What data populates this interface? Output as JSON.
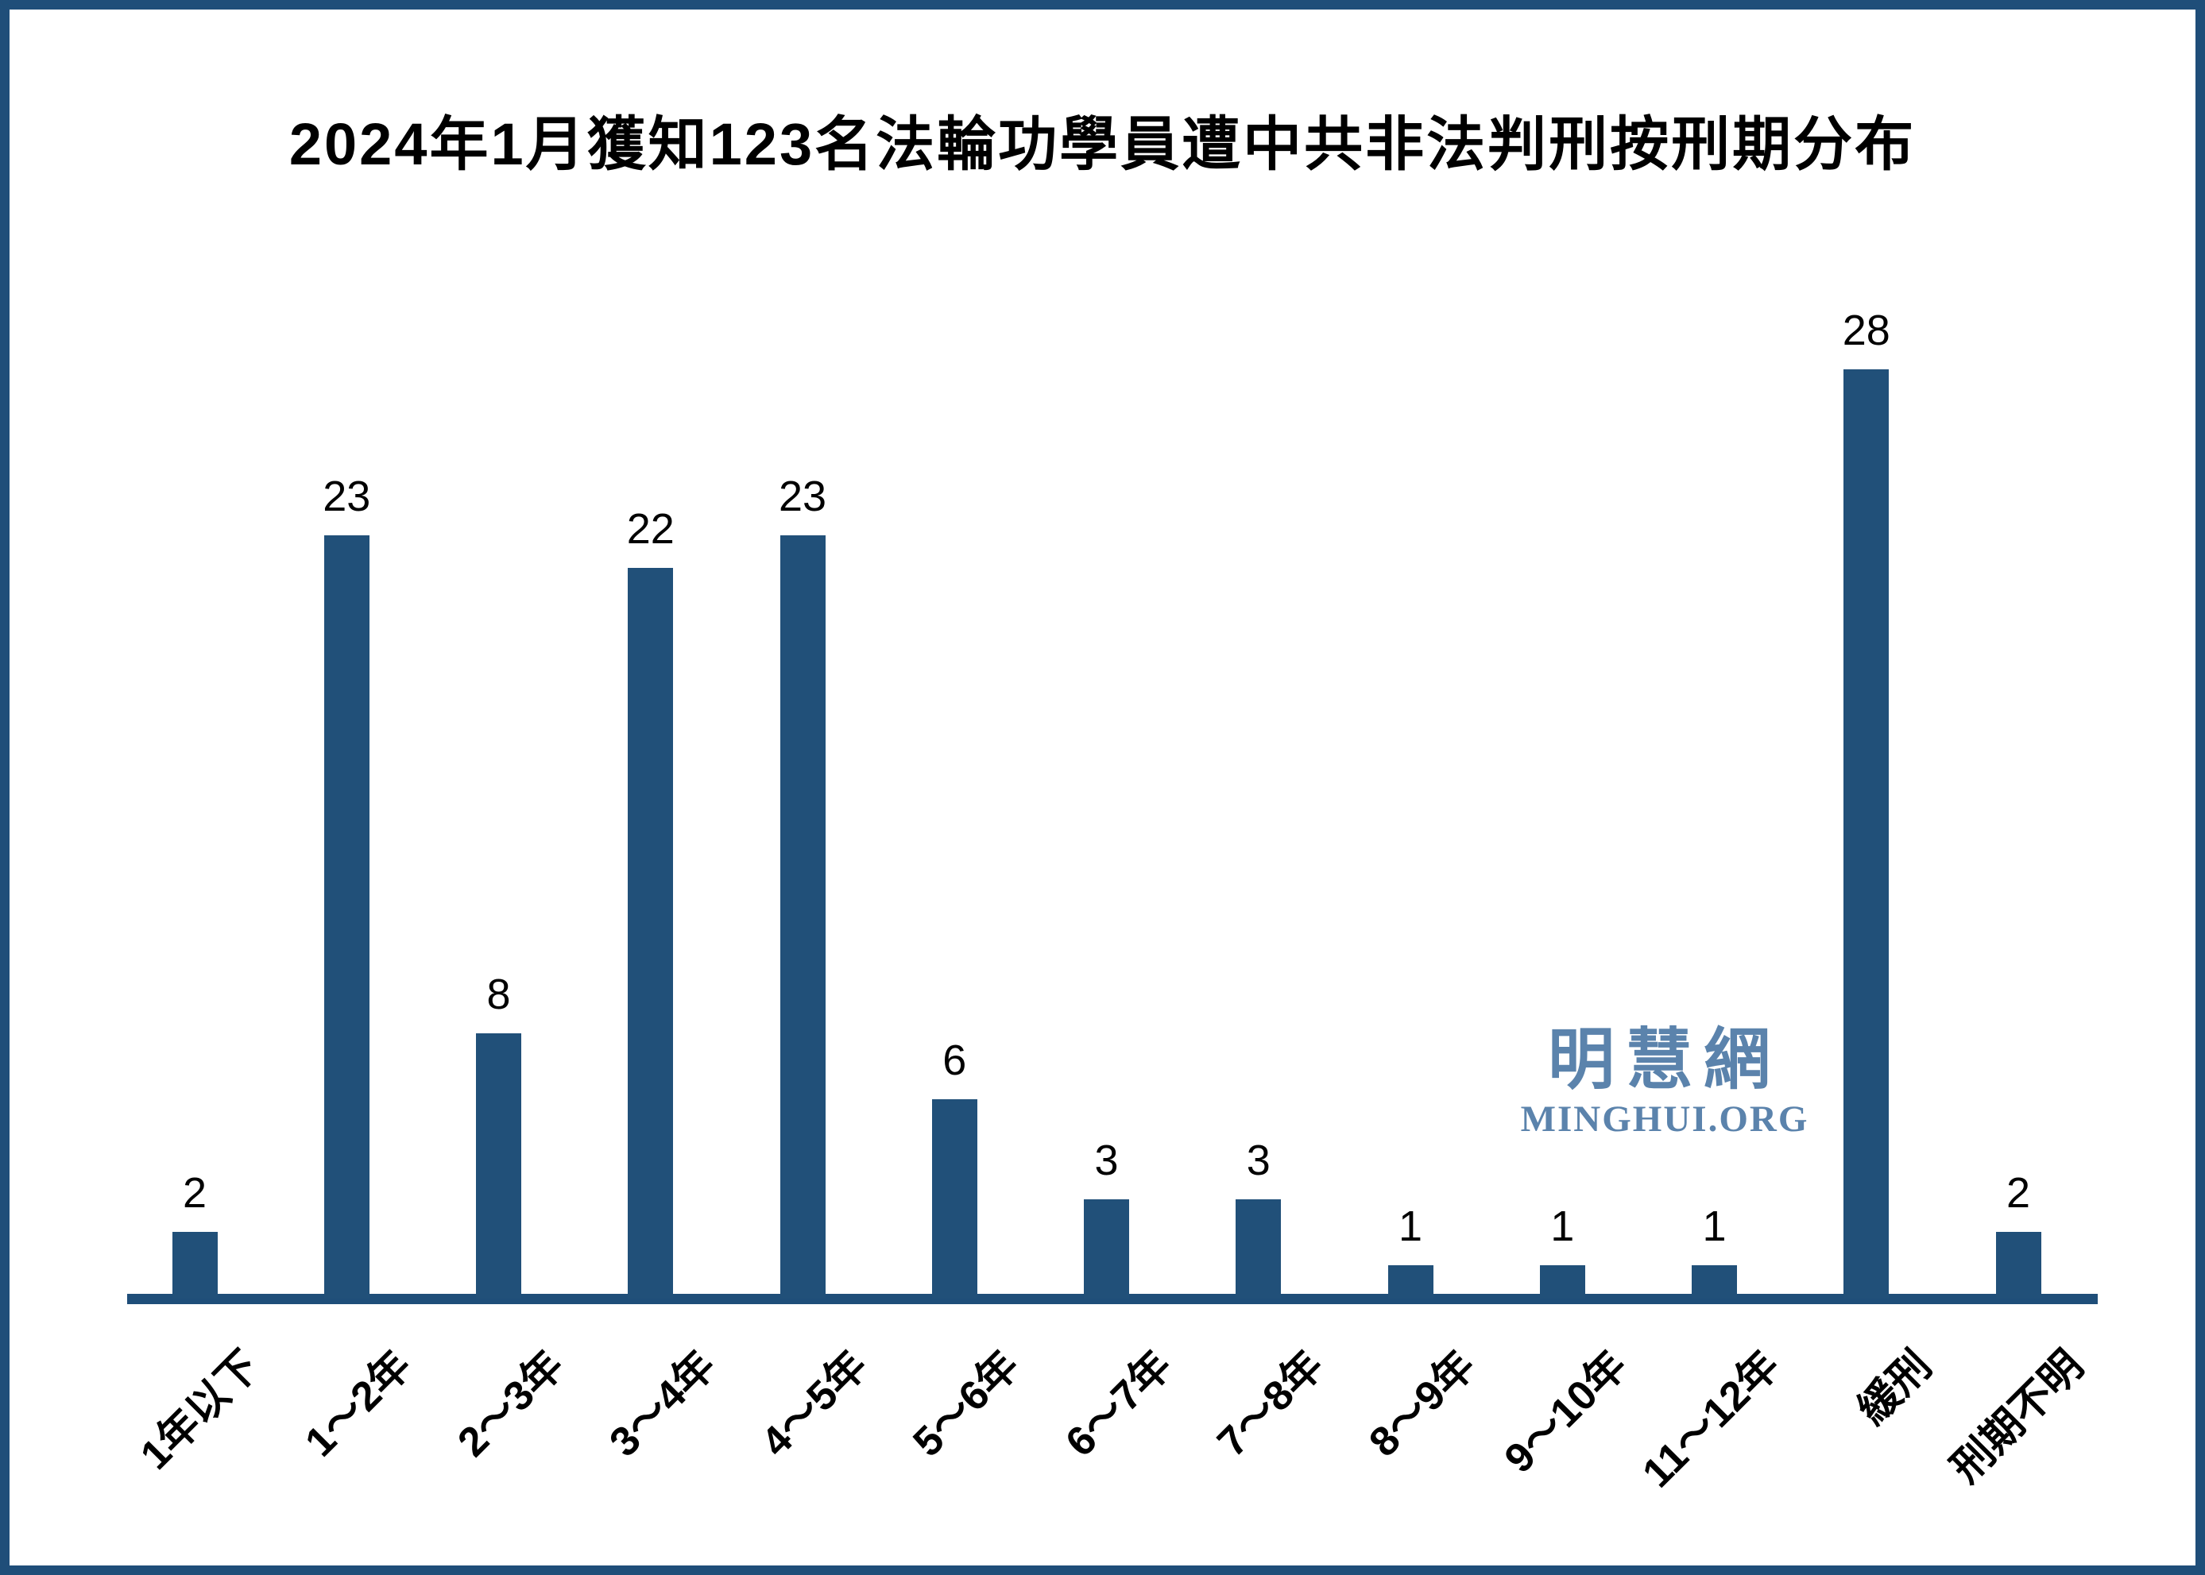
{
  "page": {
    "background": "#ffffff",
    "frame_color": "#1F4E79"
  },
  "title": "2024年1月獲知123名法輪功學員遭中共非法判刑按刑期分布",
  "watermark": {
    "cjk": "明慧網",
    "latin": "MINGHUI.ORG",
    "color": "#5B83AC"
  },
  "chart_data": {
    "type": "bar",
    "title": "2024年1月獲知123名法輪功學員遭中共非法判刑按刑期分布",
    "categories": [
      "1年以下",
      "1～2年",
      "2～3年",
      "3～4年",
      "4～5年",
      "5～6年",
      "6～7年",
      "7～8年",
      "8～9年",
      "9～10年",
      "11～12年",
      "緩刑",
      "刑期不明"
    ],
    "values": [
      2,
      23,
      8,
      22,
      23,
      6,
      3,
      3,
      1,
      1,
      1,
      28,
      2
    ],
    "total": 123,
    "bar_color": "#215079",
    "axis_color": "#1F4E79",
    "label_color": "#000000",
    "xlabel": "",
    "ylabel": "",
    "ylim": [
      0,
      28
    ],
    "grid": false,
    "legend": false,
    "data_labels": true,
    "x_tick_rotation_deg": 45
  }
}
